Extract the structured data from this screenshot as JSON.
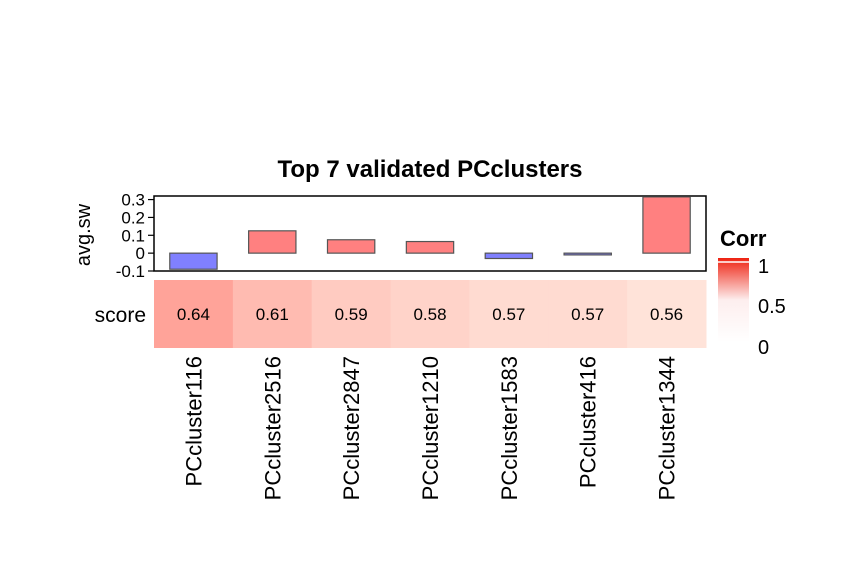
{
  "chart_data": {
    "type": "bar",
    "title": "Top 7 validated PCclusters",
    "categories": [
      "PCcluster116",
      "PCcluster2516",
      "PCcluster2847",
      "PCcluster1210",
      "PCcluster1583",
      "PCcluster416",
      "PCcluster1344"
    ],
    "bar_panel": {
      "ylabel": "avg.sw",
      "ylim": [
        -0.1,
        0.32
      ],
      "yticks": [
        -0.1,
        0,
        0.1,
        0.2,
        0.3
      ],
      "ytick_labels": [
        "-0.1",
        "0",
        "0.1",
        "0.2",
        "0.3"
      ],
      "values": [
        -0.09,
        0.125,
        0.075,
        0.065,
        -0.03,
        -0.01,
        0.315
      ],
      "positive_color": "#ff8080",
      "negative_color": "#8080ff"
    },
    "heatmap_row": {
      "label": "score",
      "values": [
        0.64,
        0.61,
        0.59,
        0.58,
        0.57,
        0.57,
        0.56
      ],
      "value_labels": [
        "0.64",
        "0.61",
        "0.59",
        "0.58",
        "0.57",
        "0.57",
        "0.56"
      ]
    },
    "legend": {
      "title": "Corr",
      "range": [
        0,
        1
      ],
      "tick_labels": [
        "1",
        "0.5",
        "0"
      ],
      "colors": [
        "#ffffff",
        "#fff0f0",
        "#ee2211"
      ],
      "placement": "right"
    },
    "grid": false
  }
}
